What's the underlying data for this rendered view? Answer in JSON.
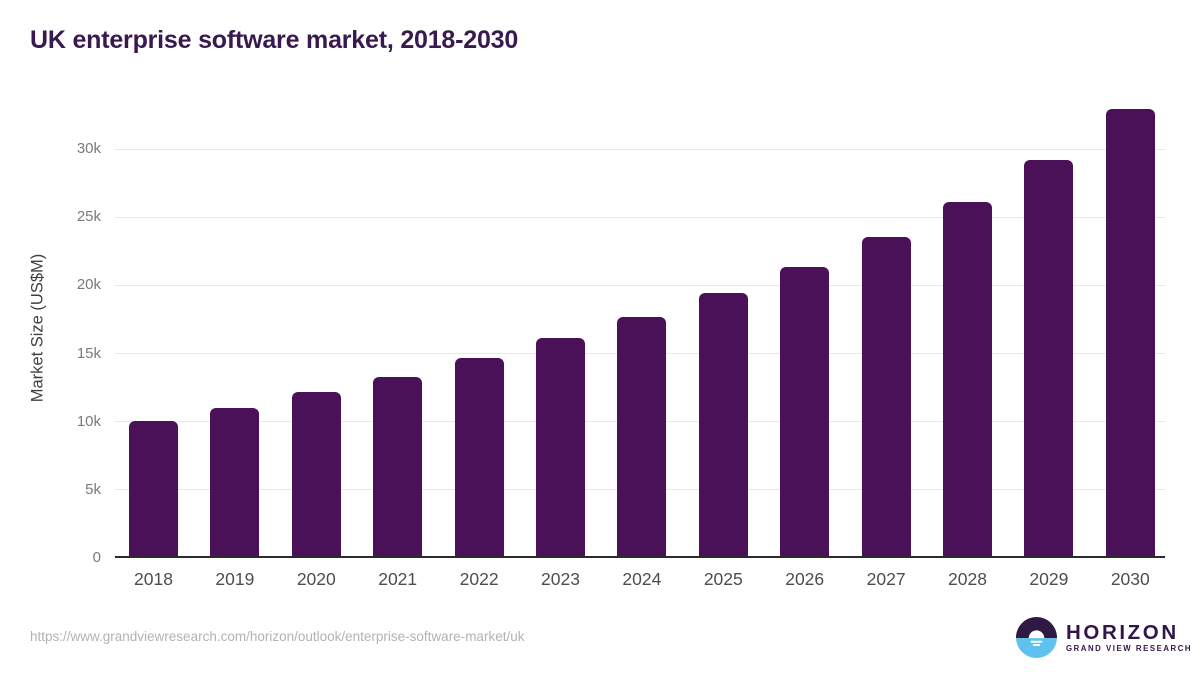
{
  "title": "UK enterprise software market, 2018-2030",
  "chart_data": {
    "type": "bar",
    "title": "UK enterprise software market, 2018-2030",
    "categories": [
      "2018",
      "2019",
      "2020",
      "2021",
      "2022",
      "2023",
      "2024",
      "2025",
      "2026",
      "2027",
      "2028",
      "2029",
      "2030"
    ],
    "values": [
      9900,
      10850,
      12050,
      13150,
      14500,
      16000,
      17550,
      19300,
      21200,
      23400,
      26000,
      29050,
      32800
    ],
    "unit": "US$M",
    "xlabel": "",
    "ylabel": "Market Size (US$M)",
    "ylim": [
      0,
      33750
    ],
    "yticks": [
      0,
      5000,
      10000,
      15000,
      20000,
      25000,
      30000
    ],
    "ytick_labels": [
      "0",
      "5k",
      "10k",
      "15k",
      "20k",
      "25k",
      "30k"
    ],
    "grid": "horizontal-only",
    "legend": "none",
    "bar_color": "#4a1158"
  },
  "colors": {
    "background": "#ffffff",
    "bar": "#4a1158",
    "title_text": "#381a4f",
    "axis_line": "#2b2b2b",
    "gridline": "#e8e8e8",
    "ytick_label": "#7a7a7a",
    "xtick_label": "#4d4d4d",
    "axis_title": "#3f3f3f",
    "url_text": "#b3b3b3",
    "logo_purple": "#32164a",
    "logo_blue": "#5ec1ef"
  },
  "footer": {
    "source_url": "https://www.grandviewresearch.com/horizon/outlook/enterprise-software-market/uk",
    "logo": {
      "brand": "HORIZON",
      "sub_brand": "GRAND VIEW RESEARCH"
    }
  }
}
